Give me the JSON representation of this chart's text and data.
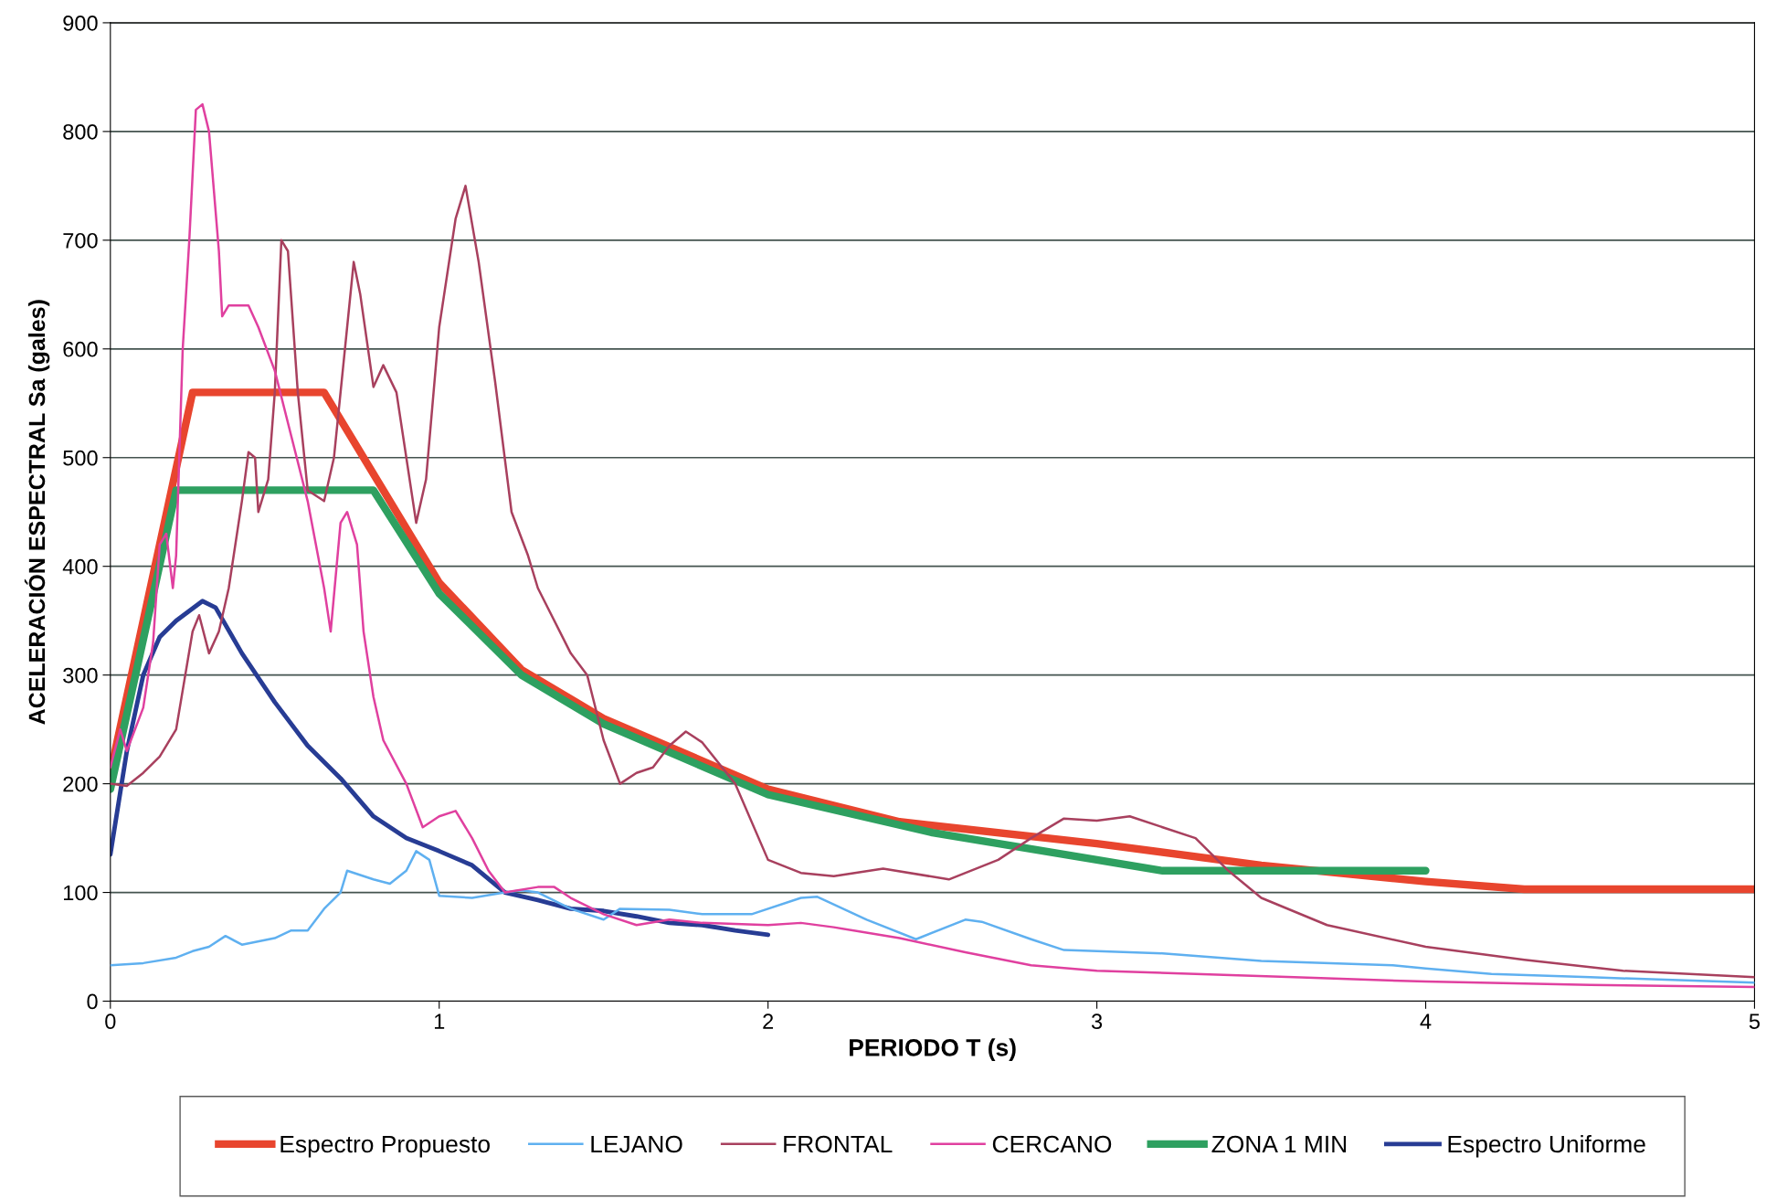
{
  "chart_data": {
    "type": "line",
    "xlabel": "PERIODO T (s)",
    "ylabel": "ACELERACIÓN ESPECTRAL Sa (gales)",
    "xlim": [
      0,
      5
    ],
    "xticks": [
      0,
      1,
      2,
      3,
      4,
      5
    ],
    "ylim": [
      0,
      900
    ],
    "yticks": [
      0,
      100,
      200,
      300,
      400,
      500,
      600,
      700,
      800,
      900
    ],
    "grid": "y",
    "legend": "bottom",
    "marker": "none",
    "line_style": "solid",
    "series": [
      {
        "name": "Espectro Propuesto",
        "color": "#e8452e",
        "x": [
          0,
          0.25,
          0.65,
          1.0,
          1.25,
          1.5,
          2.0,
          2.4,
          3.0,
          3.5,
          4.0,
          4.3,
          5.0
        ],
        "values": [
          210,
          560,
          560,
          385,
          305,
          260,
          195,
          165,
          145,
          125,
          110,
          103,
          103
        ]
      },
      {
        "name": "LEJANO",
        "color": "#5fb0f0",
        "x": [
          0,
          0.1,
          0.2,
          0.25,
          0.3,
          0.35,
          0.4,
          0.5,
          0.55,
          0.6,
          0.65,
          0.7,
          0.72,
          0.8,
          0.85,
          0.9,
          0.93,
          0.97,
          1.0,
          1.1,
          1.2,
          1.25,
          1.3,
          1.4,
          1.5,
          1.55,
          1.7,
          1.8,
          1.95,
          2.1,
          2.15,
          2.3,
          2.45,
          2.6,
          2.65,
          2.8,
          2.9,
          3.0,
          3.2,
          3.5,
          3.9,
          4.0,
          4.2,
          4.5,
          5.0
        ],
        "values": [
          33,
          35,
          40,
          46,
          50,
          60,
          52,
          58,
          65,
          65,
          85,
          100,
          120,
          112,
          108,
          120,
          138,
          130,
          97,
          95,
          100,
          102,
          100,
          85,
          75,
          85,
          84,
          80,
          80,
          95,
          96,
          75,
          57,
          75,
          73,
          57,
          47,
          46,
          44,
          37,
          33,
          30,
          25,
          22,
          17
        ]
      },
      {
        "name": "FRONTAL",
        "color": "#a8405e",
        "x": [
          0,
          0.05,
          0.1,
          0.15,
          0.2,
          0.25,
          0.27,
          0.3,
          0.33,
          0.36,
          0.4,
          0.42,
          0.44,
          0.45,
          0.48,
          0.5,
          0.52,
          0.54,
          0.57,
          0.6,
          0.65,
          0.68,
          0.72,
          0.74,
          0.76,
          0.8,
          0.83,
          0.87,
          0.9,
          0.93,
          0.96,
          1.0,
          1.05,
          1.08,
          1.12,
          1.17,
          1.22,
          1.27,
          1.3,
          1.4,
          1.45,
          1.5,
          1.55,
          1.6,
          1.65,
          1.7,
          1.75,
          1.8,
          1.9,
          2.0,
          2.1,
          2.2,
          2.35,
          2.55,
          2.7,
          2.8,
          2.9,
          3.0,
          3.1,
          3.2,
          3.3,
          3.4,
          3.5,
          3.7,
          4.0,
          4.3,
          4.6,
          5.0
        ],
        "values": [
          200,
          198,
          210,
          225,
          250,
          340,
          355,
          320,
          340,
          380,
          460,
          505,
          500,
          450,
          480,
          560,
          700,
          690,
          560,
          470,
          460,
          500,
          620,
          680,
          650,
          565,
          585,
          560,
          500,
          440,
          480,
          620,
          720,
          750,
          680,
          570,
          450,
          410,
          380,
          320,
          300,
          240,
          200,
          210,
          215,
          235,
          248,
          238,
          200,
          130,
          118,
          115,
          122,
          112,
          130,
          150,
          168,
          166,
          170,
          160,
          150,
          120,
          95,
          70,
          50,
          38,
          28,
          22
        ]
      },
      {
        "name": "CERCANO",
        "color": "#e0409f",
        "x": [
          0,
          0.03,
          0.05,
          0.1,
          0.13,
          0.15,
          0.17,
          0.19,
          0.2,
          0.22,
          0.24,
          0.26,
          0.28,
          0.3,
          0.33,
          0.34,
          0.36,
          0.42,
          0.45,
          0.5,
          0.55,
          0.6,
          0.65,
          0.67,
          0.7,
          0.72,
          0.75,
          0.77,
          0.8,
          0.83,
          0.9,
          0.95,
          1.0,
          1.05,
          1.1,
          1.15,
          1.2,
          1.3,
          1.35,
          1.4,
          1.5,
          1.6,
          1.7,
          1.8,
          2.0,
          2.1,
          2.2,
          2.4,
          2.6,
          2.8,
          3.0,
          3.3,
          3.6,
          4.0,
          4.5,
          5.0
        ],
        "values": [
          215,
          250,
          230,
          270,
          330,
          420,
          430,
          380,
          410,
          600,
          700,
          820,
          825,
          800,
          690,
          630,
          640,
          640,
          620,
          580,
          520,
          460,
          380,
          340,
          440,
          450,
          420,
          340,
          280,
          240,
          200,
          160,
          170,
          175,
          150,
          120,
          100,
          105,
          105,
          95,
          80,
          70,
          75,
          72,
          70,
          72,
          68,
          58,
          45,
          33,
          28,
          25,
          22,
          18,
          15,
          13
        ]
      },
      {
        "name": "ZONA 1 MIN",
        "color": "#2ea060",
        "x": [
          0,
          0.2,
          0.8,
          1.0,
          1.25,
          1.5,
          2.0,
          2.5,
          3.0,
          3.2,
          4.0
        ],
        "values": [
          195,
          470,
          470,
          375,
          300,
          255,
          190,
          155,
          130,
          120,
          120
        ]
      },
      {
        "name": "Espectro Uniforme",
        "color": "#273c94",
        "x": [
          0,
          0.05,
          0.1,
          0.15,
          0.2,
          0.28,
          0.32,
          0.4,
          0.5,
          0.6,
          0.7,
          0.8,
          0.9,
          1.0,
          1.1,
          1.2,
          1.3,
          1.4,
          1.5,
          1.6,
          1.7,
          1.8,
          1.9,
          2.0
        ],
        "values": [
          135,
          230,
          300,
          335,
          350,
          368,
          362,
          320,
          275,
          235,
          205,
          170,
          150,
          138,
          125,
          100,
          93,
          85,
          83,
          78,
          72,
          70,
          65,
          61
        ]
      }
    ]
  }
}
